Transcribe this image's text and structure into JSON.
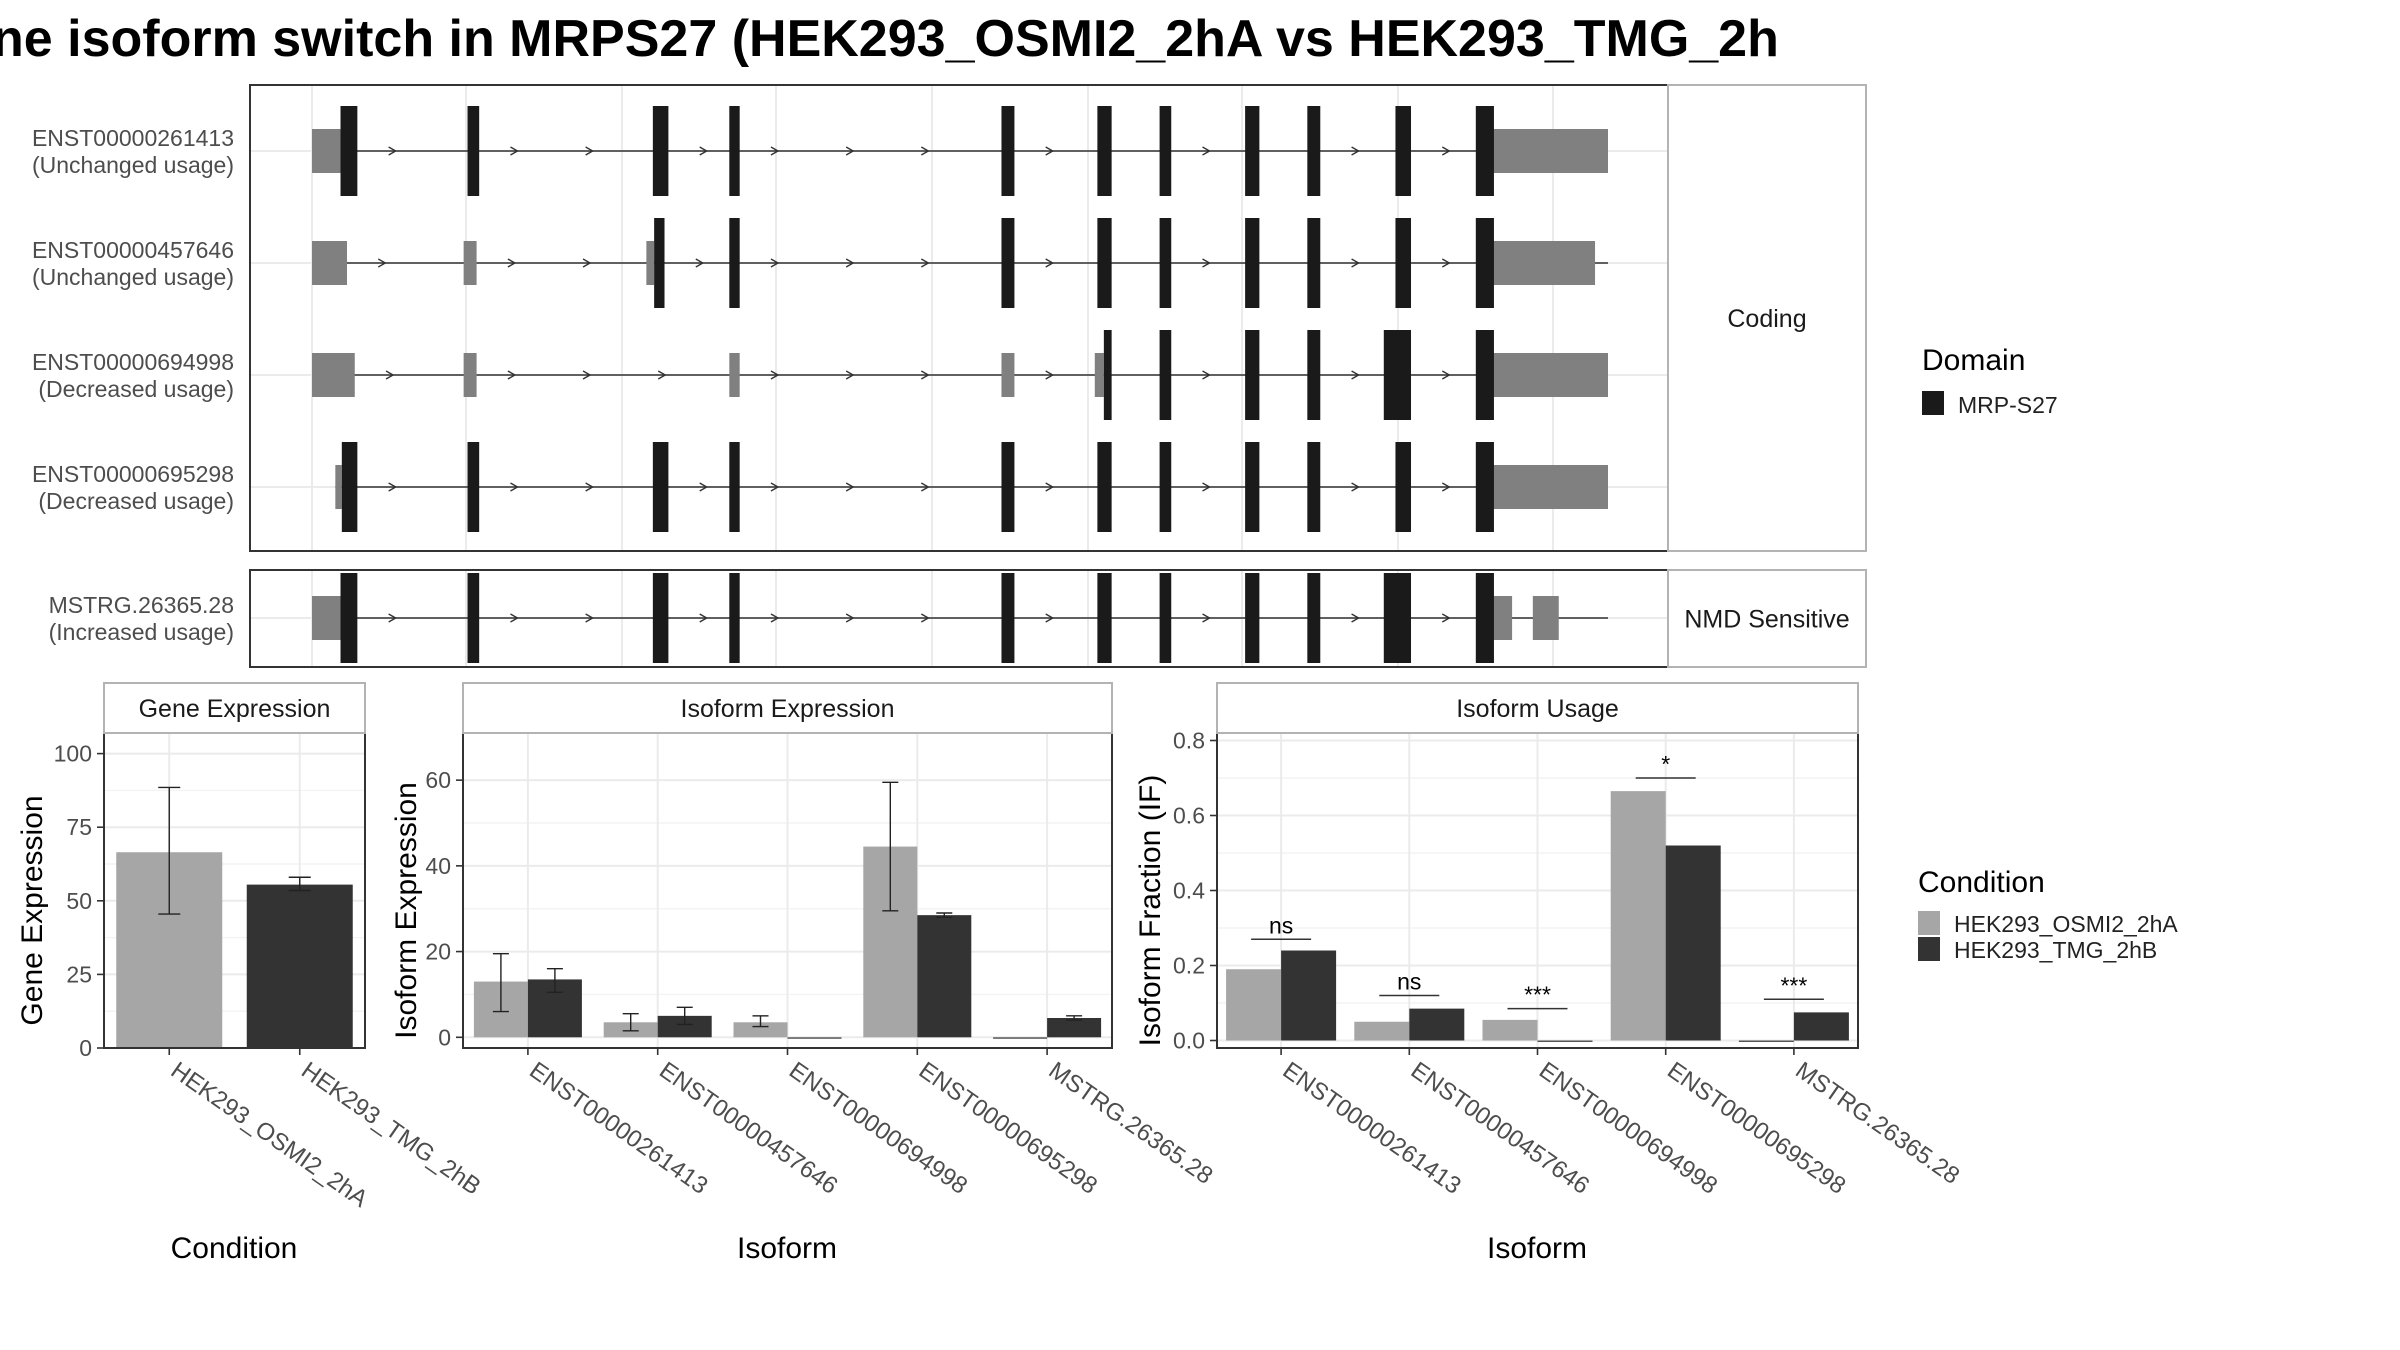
{
  "title": "ne isoform switch in MRPS27 (HEK293_OSMI2_2hA vs HEK293_TMG_2h",
  "colors": {
    "domain": "#1a1a1a",
    "utr": "#808080",
    "condA": "#a6a6a6",
    "condB": "#333333",
    "grid": "#ebebeb",
    "panel_border": "#333333",
    "strip_border": "#b3b3b3"
  },
  "structure": {
    "facets": [
      {
        "label": "Coding",
        "rows": [
          0,
          1,
          2,
          3
        ]
      },
      {
        "label": "NMD Sensitive",
        "rows": [
          4
        ]
      }
    ],
    "rows": [
      {
        "id": "ENST00000261413",
        "usage": "(Unchanged usage)",
        "line": [
          0,
          1000
        ],
        "utr": [
          [
            0,
            22
          ],
          [
            905,
            1000
          ]
        ],
        "cds": [
          [
            22,
            35
          ],
          [
            120,
            129
          ],
          [
            263,
            275
          ],
          [
            322,
            330
          ],
          [
            532,
            542
          ],
          [
            606,
            617
          ],
          [
            654,
            663
          ],
          [
            720,
            731
          ],
          [
            768,
            778
          ],
          [
            836,
            848
          ],
          [
            898,
            912
          ]
        ]
      },
      {
        "id": "ENST00000457646",
        "usage": "(Unchanged usage)",
        "line": [
          0,
          1000
        ],
        "utr": [
          [
            0,
            27
          ],
          [
            117,
            127
          ],
          [
            258,
            264
          ],
          [
            905,
            990
          ]
        ],
        "cds": [
          [
            264,
            272
          ],
          [
            322,
            330
          ],
          [
            532,
            542
          ],
          [
            606,
            617
          ],
          [
            654,
            663
          ],
          [
            720,
            731
          ],
          [
            768,
            778
          ],
          [
            836,
            848
          ],
          [
            898,
            912
          ]
        ]
      },
      {
        "id": "ENST00000694998",
        "usage": "(Decreased usage)",
        "line": [
          0,
          1000
        ],
        "utr": [
          [
            0,
            33
          ],
          [
            117,
            127
          ],
          [
            322,
            330
          ],
          [
            532,
            542
          ],
          [
            604,
            611
          ],
          [
            905,
            1000
          ]
        ],
        "cds": [
          [
            611,
            617
          ],
          [
            654,
            663
          ],
          [
            720,
            731
          ],
          [
            768,
            778
          ],
          [
            827,
            848
          ],
          [
            898,
            912
          ]
        ]
      },
      {
        "id": "ENST00000695298",
        "usage": "(Decreased usage)",
        "line": [
          18,
          1000
        ],
        "utr": [
          [
            18,
            23
          ],
          [
            905,
            1000
          ]
        ],
        "cds": [
          [
            23,
            35
          ],
          [
            120,
            129
          ],
          [
            263,
            275
          ],
          [
            322,
            330
          ],
          [
            532,
            542
          ],
          [
            606,
            617
          ],
          [
            654,
            663
          ],
          [
            720,
            731
          ],
          [
            768,
            778
          ],
          [
            836,
            848
          ],
          [
            898,
            912
          ]
        ]
      },
      {
        "id": "MSTRG.26365.28",
        "usage": "(Increased usage)",
        "line": [
          0,
          1000
        ],
        "utr": [
          [
            0,
            22
          ],
          [
            905,
            926
          ],
          [
            942,
            962
          ]
        ],
        "cds": [
          [
            22,
            35
          ],
          [
            120,
            129
          ],
          [
            263,
            275
          ],
          [
            322,
            330
          ],
          [
            532,
            542
          ],
          [
            606,
            617
          ],
          [
            654,
            663
          ],
          [
            720,
            731
          ],
          [
            768,
            778
          ],
          [
            827,
            848
          ],
          [
            898,
            912
          ]
        ]
      }
    ]
  },
  "domain_legend": {
    "title": "Domain",
    "items": [
      "MRP-S27"
    ]
  },
  "condition_legend": {
    "title": "Condition",
    "items": [
      "HEK293_OSMI2_2hA",
      "HEK293_TMG_2hB"
    ]
  },
  "chart_data": [
    {
      "type": "bar",
      "title": "Gene Expression",
      "xlabel": "Condition",
      "ylabel": "Gene Expression",
      "ylim": [
        0,
        107
      ],
      "yticks": [
        0,
        25,
        50,
        75,
        100
      ],
      "categories": [
        "HEK293_OSMI2_2hA",
        "HEK293_TMG_2hB"
      ],
      "series": [
        {
          "name": "HEK293_OSMI2_2hA",
          "values": [
            66.5,
            null
          ],
          "err_low": [
            45.5,
            null
          ],
          "err_high": [
            88.5,
            null
          ]
        },
        {
          "name": "HEK293_TMG_2hB",
          "values": [
            null,
            55.5
          ],
          "err_low": [
            null,
            53.5
          ],
          "err_high": [
            null,
            58
          ]
        }
      ]
    },
    {
      "type": "bar",
      "title": "Isoform Expression",
      "xlabel": "Isoform",
      "ylabel": "Isoform Expression",
      "ylim": [
        -2.5,
        71
      ],
      "yticks": [
        0,
        20,
        40,
        60
      ],
      "categories": [
        "ENST00000261413",
        "ENST00000457646",
        "ENST00000694998",
        "ENST00000695298",
        "MSTRG.26365.28"
      ],
      "series": [
        {
          "name": "HEK293_OSMI2_2hA",
          "values": [
            13,
            3.5,
            3.5,
            44.5,
            0
          ],
          "err_low": [
            6,
            1.5,
            2.5,
            29.5,
            0
          ],
          "err_high": [
            19.5,
            5.5,
            5,
            59.5,
            0
          ]
        },
        {
          "name": "HEK293_TMG_2hB",
          "values": [
            13.5,
            5,
            0,
            28.5,
            4.5
          ],
          "err_low": [
            10.5,
            3,
            0,
            28,
            4
          ],
          "err_high": [
            16,
            7,
            0,
            29,
            5
          ]
        }
      ]
    },
    {
      "type": "bar",
      "title": "Isoform Usage",
      "xlabel": "Isoform",
      "ylabel": "Isoform Fraction (IF)",
      "ylim": [
        -0.02,
        0.82
      ],
      "yticks": [
        0.0,
        0.2,
        0.4,
        0.6,
        0.8
      ],
      "ytick_labels": [
        "0.0",
        "0.2",
        "0.4",
        "0.6",
        "0.8"
      ],
      "categories": [
        "ENST00000261413",
        "ENST00000457646",
        "ENST00000694998",
        "ENST00000695298",
        "MSTRG.26365.28"
      ],
      "series": [
        {
          "name": "HEK293_OSMI2_2hA",
          "values": [
            0.19,
            0.05,
            0.055,
            0.665,
            0
          ]
        },
        {
          "name": "HEK293_TMG_2hB",
          "values": [
            0.24,
            0.085,
            0,
            0.52,
            0.075
          ]
        }
      ],
      "annotations": [
        {
          "text": "ns",
          "y": 0.27
        },
        {
          "text": "ns",
          "y": 0.12
        },
        {
          "text": "***",
          "y": 0.085
        },
        {
          "text": "*",
          "y": 0.7
        },
        {
          "text": "***",
          "y": 0.11
        }
      ]
    }
  ]
}
